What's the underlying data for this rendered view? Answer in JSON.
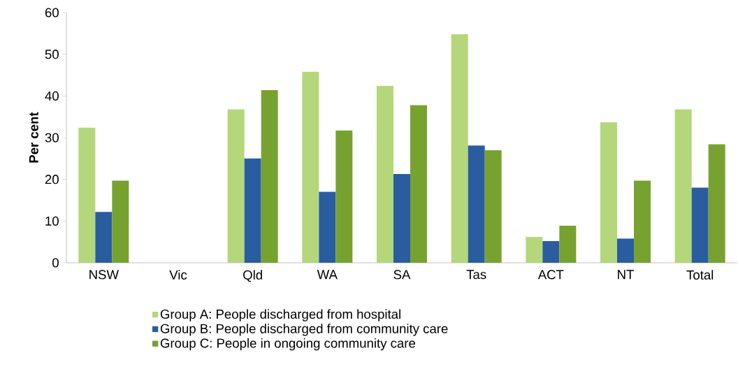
{
  "chart_data": {
    "type": "bar",
    "ylabel": "Per cent",
    "categories": [
      "NSW",
      "Vic",
      "Qld",
      "WA",
      "SA",
      "Tas",
      "ACT",
      "NT",
      "Total"
    ],
    "series": [
      {
        "name": "Group A: People discharged from hospital",
        "color": "#b3d77a",
        "values": [
          32.4,
          null,
          36.8,
          45.8,
          42.4,
          54.8,
          6.2,
          33.7,
          36.8
        ]
      },
      {
        "name": "Group B: People discharged from community care",
        "color": "#2a5d9f",
        "values": [
          12.2,
          null,
          25.0,
          17.0,
          21.3,
          28.1,
          5.2,
          5.8,
          18.0
        ]
      },
      {
        "name": "Group C: People in ongoing community care",
        "color": "#78a22f",
        "values": [
          19.7,
          null,
          41.4,
          31.7,
          37.8,
          27.0,
          8.9,
          19.7,
          28.4
        ]
      }
    ],
    "ylim": [
      0,
      60
    ],
    "yticks": [
      0,
      10,
      20,
      30,
      40,
      50,
      60
    ],
    "legend": "bottom"
  }
}
